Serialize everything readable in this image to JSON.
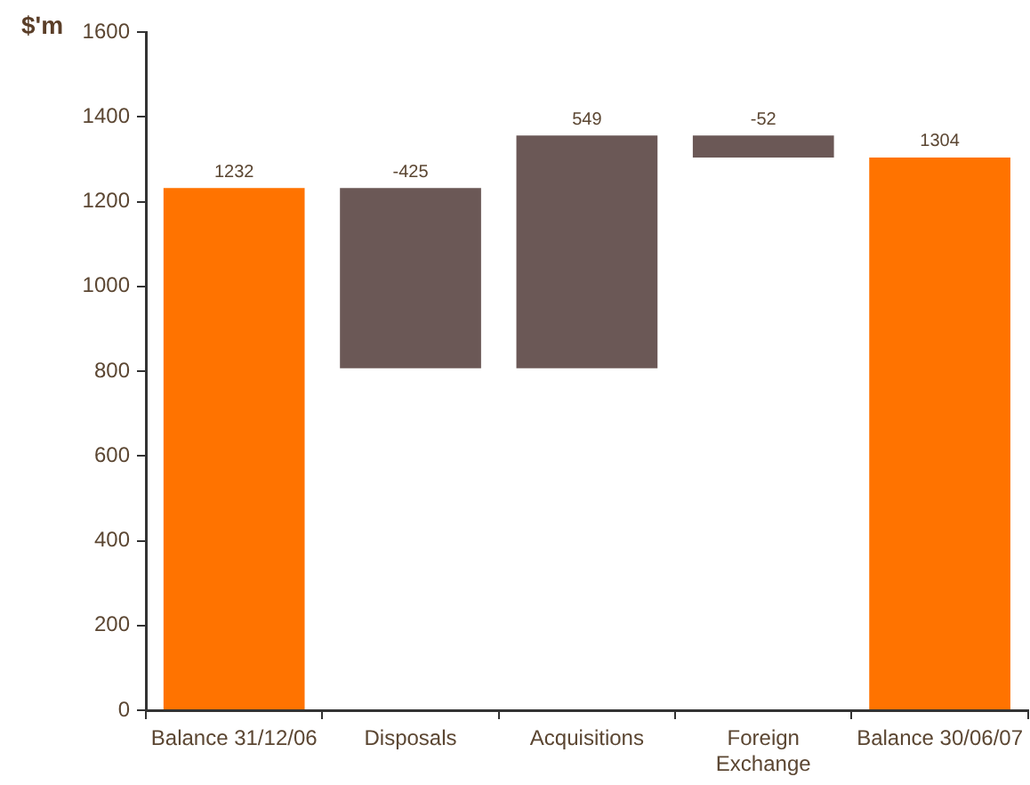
{
  "chart_data": {
    "type": "bar",
    "ylabel": "$'m",
    "categories": [
      "Balance 31/12/06",
      "Disposals",
      "Acquisitions",
      "Foreign Exchange",
      "Balance 30/06/07"
    ],
    "values": [
      1232,
      -425,
      549,
      -52,
      1304
    ],
    "base": [
      0,
      1232,
      807,
      1356,
      0
    ],
    "colors": [
      "#ff7300",
      "#6b5856",
      "#6b5856",
      "#6b5856",
      "#ff7300"
    ],
    "ylim": [
      0,
      1600
    ],
    "yticks": [
      0,
      200,
      400,
      600,
      800,
      1000,
      1200,
      1400,
      1600
    ],
    "data_labels": true,
    "grid": false,
    "legend": false
  }
}
